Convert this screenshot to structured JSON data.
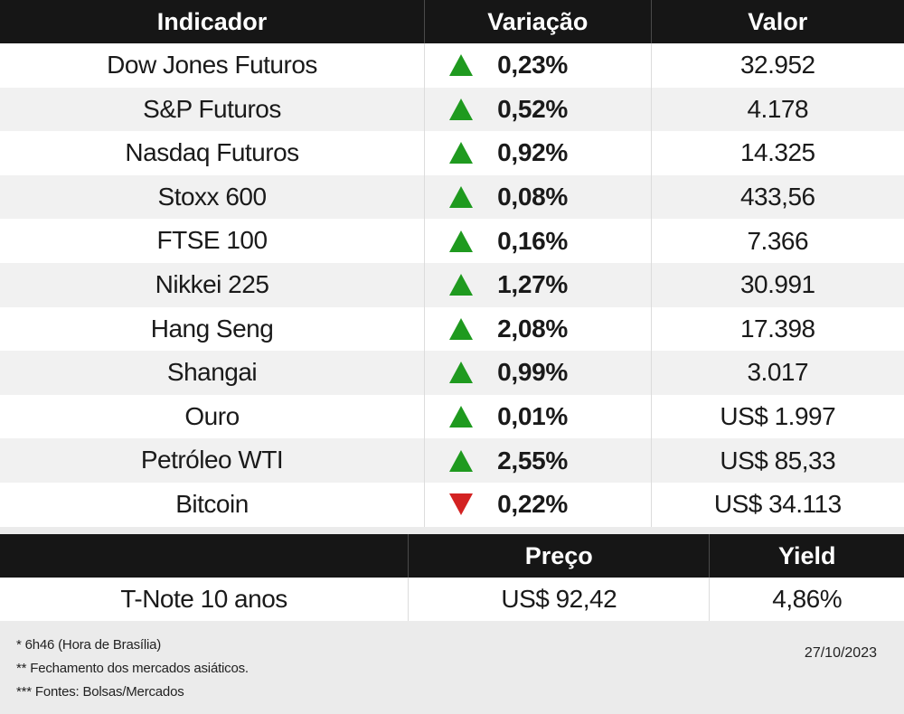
{
  "table1": {
    "headers": [
      "Indicador",
      "Variação",
      "Valor"
    ],
    "rows": [
      {
        "name": "Dow Jones Futuros",
        "direction": "up",
        "change": "0,23%",
        "value": "32.952"
      },
      {
        "name": "S&P Futuros",
        "direction": "up",
        "change": "0,52%",
        "value": "4.178"
      },
      {
        "name": "Nasdaq Futuros",
        "direction": "up",
        "change": "0,92%",
        "value": "14.325"
      },
      {
        "name": "Stoxx 600",
        "direction": "up",
        "change": "0,08%",
        "value": "433,56"
      },
      {
        "name": "FTSE 100",
        "direction": "up",
        "change": "0,16%",
        "value": "7.366"
      },
      {
        "name": "Nikkei 225",
        "direction": "up",
        "change": "1,27%",
        "value": "30.991"
      },
      {
        "name": "Hang Seng",
        "direction": "up",
        "change": "2,08%",
        "value": "17.398"
      },
      {
        "name": "Shangai",
        "direction": "up",
        "change": "0,99%",
        "value": "3.017"
      },
      {
        "name": "Ouro",
        "direction": "up",
        "change": "0,01%",
        "value": "US$ 1.997"
      },
      {
        "name": "Petróleo WTI",
        "direction": "up",
        "change": "2,55%",
        "value": "US$ 85,33"
      },
      {
        "name": "Bitcoin",
        "direction": "down",
        "change": "0,22%",
        "value": "US$ 34.113"
      }
    ]
  },
  "table2": {
    "headers": [
      "",
      "Preço",
      "Yield"
    ],
    "row": {
      "name": "T-Note 10 anos",
      "price": "US$ 92,42",
      "yield": "4,86%"
    }
  },
  "footnotes": [
    "* 6h46 (Hora de Brasília)",
    "** Fechamento dos mercados asiáticos.",
    "*** Fontes: Bolsas/Mercados"
  ],
  "date": "27/10/2023",
  "colors": {
    "up": "#1f9a1f",
    "down": "#d32222",
    "header_bg": "#161616"
  }
}
